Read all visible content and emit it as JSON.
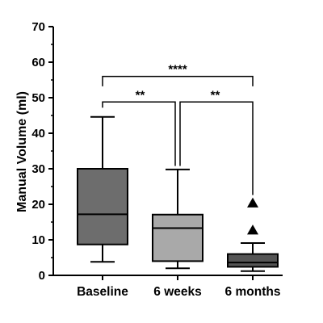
{
  "chart_data": {
    "type": "box",
    "ylabel": "Manual Volume (ml)",
    "ylim": [
      0,
      70
    ],
    "yticks": [
      0,
      10,
      20,
      30,
      40,
      50,
      60,
      70
    ],
    "categories": [
      "Baseline",
      "6 weeks",
      "6 months"
    ],
    "boxes": [
      {
        "category": "Baseline",
        "whisker_low": 3.8,
        "q1": 8.7,
        "median": 17.2,
        "q3": 30.0,
        "whisker_high": 44.6,
        "outliers": [],
        "color": "#6d6d6d"
      },
      {
        "category": "6 weeks",
        "whisker_low": 2.0,
        "q1": 4.0,
        "median": 13.3,
        "q3": 17.1,
        "whisker_high": 29.8,
        "outliers": [],
        "color": "#a9a9a9"
      },
      {
        "category": "6 months",
        "whisker_low": 1.2,
        "q1": 2.4,
        "median": 3.6,
        "q3": 6.0,
        "whisker_high": 9.1,
        "outliers": [
          12.7,
          20.3
        ],
        "color": "#555555"
      }
    ],
    "comparisons": [
      {
        "from": "Baseline",
        "to": "6 months",
        "label": "****",
        "y": 56.0
      },
      {
        "from": "Baseline",
        "to": "6 weeks",
        "label": "**",
        "y": 48.8
      },
      {
        "from": "6 weeks",
        "to": "6 months",
        "label": "**",
        "y": 48.8
      }
    ]
  }
}
